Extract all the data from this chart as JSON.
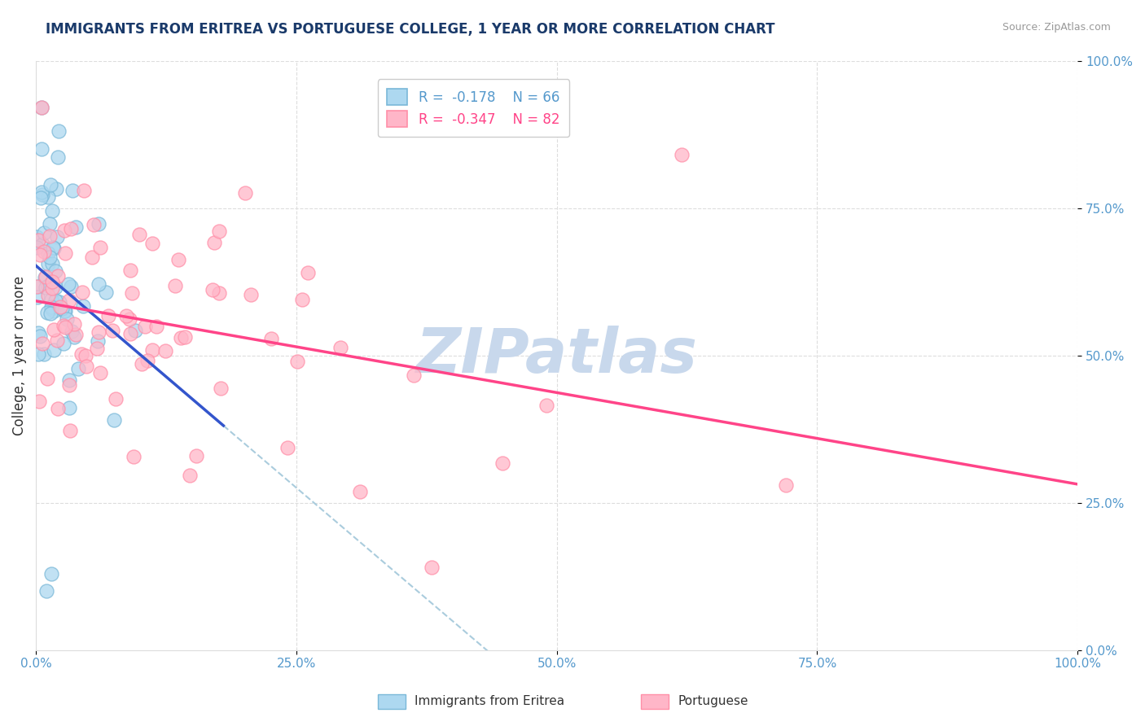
{
  "title": "IMMIGRANTS FROM ERITREA VS PORTUGUESE COLLEGE, 1 YEAR OR MORE CORRELATION CHART",
  "source_text": "Source: ZipAtlas.com",
  "ylabel": "College, 1 year or more",
  "legend_labels": [
    "Immigrants from Eritrea",
    "Portuguese"
  ],
  "xlim": [
    0.0,
    1.0
  ],
  "ylim": [
    0.0,
    1.0
  ],
  "blue_color": "#ADD8F0",
  "pink_color": "#FFB6C8",
  "blue_edge_color": "#7AB8D8",
  "pink_edge_color": "#FF8FA8",
  "blue_line_color": "#3355CC",
  "pink_line_color": "#FF4488",
  "blue_dash_color": "#AACCDD",
  "title_color": "#1A3A6A",
  "source_color": "#999999",
  "tick_color": "#5599CC",
  "watermark": "ZIPatlas",
  "watermark_color": "#C8D8EC",
  "blue_R": -0.178,
  "blue_N": 66,
  "pink_R": -0.347,
  "pink_N": 82,
  "grid_color": "#DDDDDD",
  "legend_r_blue": "R =  -0.178",
  "legend_r_pink": "R =  -0.347",
  "legend_n_blue": "N = 66",
  "legend_n_pink": "N = 82"
}
